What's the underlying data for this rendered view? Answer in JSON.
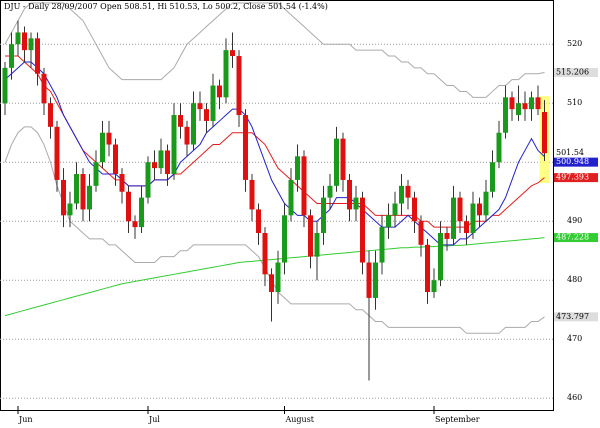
{
  "chart_data": {
    "type": "candlestick",
    "title": "DJU - Daily 28/09/2007 Open 508.51, Hi 510.53, Lo 500.2, Close 501.54 (-1.4%)",
    "categories": [
      null,
      null,
      "Jun",
      null,
      null,
      null,
      null,
      null,
      null,
      null,
      null,
      null,
      null,
      null,
      null,
      null,
      null,
      null,
      null,
      null,
      null,
      null,
      "Jul",
      null,
      null,
      null,
      null,
      null,
      null,
      null,
      null,
      null,
      null,
      null,
      null,
      null,
      null,
      null,
      null,
      null,
      null,
      null,
      null,
      "August",
      null,
      null,
      null,
      null,
      null,
      null,
      null,
      null,
      null,
      null,
      null,
      null,
      null,
      null,
      null,
      null,
      null,
      null,
      null,
      null,
      null,
      null,
      "September",
      null,
      null,
      null,
      null,
      null,
      null,
      null,
      null,
      null,
      null,
      null,
      null,
      null,
      null,
      null,
      null,
      null
    ],
    "open": [
      510,
      516,
      520,
      522,
      519,
      521,
      515,
      510,
      506,
      497,
      491,
      493,
      498,
      492,
      496,
      500,
      505,
      503,
      498,
      495,
      490,
      489,
      494,
      500,
      499,
      502,
      498,
      508,
      506,
      503,
      510,
      509,
      507,
      513,
      511,
      519,
      518,
      508,
      497,
      492,
      488,
      481,
      478,
      483,
      491,
      497,
      501,
      491,
      484,
      488,
      494,
      496,
      504,
      497,
      492,
      494,
      483,
      477,
      483,
      489,
      491,
      493,
      496,
      494,
      490,
      486,
      478,
      480,
      488,
      487,
      494,
      490,
      488,
      493,
      491,
      495,
      500,
      505,
      511,
      508,
      510,
      509,
      511,
      508.51
    ],
    "high": [
      517,
      522,
      524,
      523,
      522,
      522,
      516,
      511,
      507,
      499,
      495,
      500,
      499,
      498,
      502,
      507,
      507,
      504,
      499,
      496,
      491,
      496,
      501,
      502,
      504,
      503,
      510,
      510,
      507,
      512,
      512,
      510,
      515,
      514,
      521,
      522,
      519,
      509,
      498,
      493,
      489,
      482,
      485,
      493,
      499,
      503,
      502,
      492,
      490,
      496,
      498,
      506,
      505,
      498,
      496,
      495,
      485,
      485,
      491,
      493,
      495,
      498,
      497,
      495,
      491,
      487,
      482,
      490,
      489,
      496,
      495,
      491,
      495,
      494,
      497,
      502,
      507,
      513,
      512,
      513,
      512,
      512,
      513,
      510.53
    ],
    "low": [
      508,
      514,
      518,
      517,
      516,
      513,
      508,
      504,
      495,
      489,
      489,
      492,
      490,
      490,
      495,
      499,
      501,
      496,
      493,
      488,
      487,
      488,
      493,
      497,
      498,
      496,
      497,
      504,
      501,
      502,
      507,
      505,
      506,
      509,
      510,
      516,
      506,
      495,
      490,
      486,
      479,
      473,
      476,
      481,
      490,
      495,
      489,
      482,
      480,
      486,
      492,
      495,
      495,
      490,
      490,
      481,
      463,
      475,
      481,
      487,
      489,
      491,
      492,
      488,
      484,
      476,
      477,
      479,
      485,
      486,
      488,
      486,
      487,
      489,
      490,
      494,
      499,
      504,
      507,
      507,
      507,
      507,
      508,
      500.2
    ],
    "close": [
      516,
      520,
      522,
      519,
      521,
      515,
      510,
      506,
      497,
      491,
      493,
      498,
      492,
      496,
      500,
      505,
      503,
      498,
      495,
      490,
      489,
      494,
      500,
      499,
      502,
      498,
      508,
      506,
      503,
      510,
      509,
      507,
      513,
      511,
      519,
      518,
      508,
      497,
      492,
      488,
      481,
      478,
      483,
      491,
      497,
      501,
      491,
      484,
      488,
      494,
      496,
      504,
      497,
      492,
      494,
      483,
      477,
      483,
      489,
      491,
      493,
      496,
      494,
      490,
      486,
      478,
      480,
      488,
      487,
      494,
      490,
      488,
      493,
      491,
      495,
      500,
      505,
      511,
      509,
      510,
      509,
      511,
      509,
      501.54
    ],
    "close_label": "501.54",
    "up_color": "#1a9a1a",
    "down_color": "#e01010",
    "ylim": [
      458,
      527.5
    ],
    "yticks": [
      460,
      470,
      480,
      490,
      500,
      510,
      520
    ],
    "grid": true,
    "series": [
      {
        "color": "#aaaaaa",
        "label": "515.206",
        "values": [
          520,
          522,
          524,
          526,
          527,
          527,
          527,
          527,
          527,
          527,
          526,
          525,
          524,
          522,
          520,
          518,
          516,
          515,
          514,
          514,
          514,
          514,
          514,
          514,
          514,
          515,
          516,
          518,
          520,
          521,
          522,
          523,
          524,
          525,
          526,
          527,
          527,
          527,
          527,
          527,
          527,
          527,
          527,
          526,
          525,
          524,
          523,
          522,
          521,
          520,
          520,
          520,
          520,
          520,
          519,
          519,
          519,
          519,
          519,
          518,
          518,
          517,
          517,
          516,
          516,
          515,
          515,
          514,
          513,
          513,
          512,
          512,
          511,
          511,
          511,
          512,
          513,
          513,
          514,
          514,
          515,
          515,
          515,
          515.206
        ]
      },
      {
        "color": "#aaaaaa",
        "label": "473.797",
        "values": [
          500,
          503,
          505,
          506,
          506,
          505,
          503,
          500,
          496,
          493,
          490,
          489,
          488,
          487,
          487,
          487,
          486,
          486,
          485,
          484,
          483,
          483,
          483,
          483,
          484,
          484,
          484,
          485,
          485,
          486,
          486,
          486,
          486,
          486,
          486,
          486,
          486,
          486,
          485,
          484,
          482,
          480,
          478,
          477,
          476,
          476,
          476,
          476,
          476,
          476,
          476,
          476,
          476,
          476,
          475,
          475,
          474,
          473,
          473,
          472,
          472,
          472,
          472,
          472,
          472,
          472,
          472,
          472,
          472,
          472,
          472,
          471,
          471,
          471,
          471,
          471,
          471,
          472,
          472,
          472,
          472,
          473,
          473,
          473.797
        ]
      },
      {
        "color": "#33cc33",
        "label": "487.228",
        "values": [
          474.0,
          474.3,
          474.6,
          474.9,
          475.2,
          475.5,
          475.8,
          476.1,
          476.4,
          476.7,
          477.0,
          477.3,
          477.6,
          477.9,
          478.2,
          478.5,
          478.8,
          479.1,
          479.4,
          479.6,
          479.8,
          480.0,
          480.2,
          480.4,
          480.6,
          480.8,
          481.0,
          481.2,
          481.4,
          481.6,
          481.8,
          482.0,
          482.2,
          482.4,
          482.6,
          482.8,
          483.0,
          483.1,
          483.2,
          483.3,
          483.4,
          483.5,
          483.6,
          483.7,
          483.8,
          483.9,
          484.0,
          484.1,
          484.2,
          484.3,
          484.4,
          484.5,
          484.6,
          484.7,
          484.8,
          484.9,
          485.0,
          485.1,
          485.2,
          485.3,
          485.4,
          485.5,
          485.5,
          485.6,
          485.6,
          485.7,
          485.7,
          485.8,
          485.8,
          485.9,
          485.9,
          486.0,
          486.1,
          486.2,
          486.3,
          486.4,
          486.5,
          486.6,
          486.7,
          486.8,
          486.9,
          487.0,
          487.1,
          487.228
        ]
      },
      {
        "color": "#e02020",
        "label": "497.393",
        "values": [
          518,
          518,
          518,
          517,
          516,
          515,
          513,
          512,
          510,
          508,
          506,
          504,
          502,
          501,
          500,
          499,
          498,
          497,
          497,
          496,
          496,
          496,
          496,
          497,
          497,
          497,
          498,
          498,
          499,
          500,
          501,
          502,
          503,
          503,
          504,
          505,
          505,
          505,
          505,
          504,
          503,
          501,
          499,
          498,
          497,
          496,
          495,
          494,
          493,
          493,
          493,
          493,
          493,
          493,
          493,
          493,
          492,
          491,
          491,
          491,
          491,
          491,
          491,
          491,
          490,
          490,
          489,
          489,
          489,
          489,
          489,
          489,
          490,
          490,
          490,
          491,
          491,
          492,
          493,
          494,
          495,
          496,
          496.5,
          497.393
        ]
      },
      {
        "color": "#2222cc",
        "label": "500.948",
        "values": [
          514,
          515,
          516,
          517,
          517,
          516,
          515,
          513,
          511,
          508,
          506,
          504,
          502,
          500,
          499,
          498,
          498,
          498,
          497,
          496,
          496,
          496,
          496,
          497,
          497,
          497,
          498,
          500,
          501,
          502,
          503,
          505,
          506,
          507,
          508,
          509,
          509,
          508,
          506,
          503,
          500,
          497,
          495,
          493,
          492,
          491,
          491,
          490,
          490,
          491,
          492,
          494,
          494,
          494,
          493,
          492,
          491,
          490,
          489,
          489,
          489,
          490,
          491,
          490,
          489,
          488,
          487,
          486,
          486,
          486,
          487,
          487,
          488,
          489,
          490,
          491,
          492,
          494,
          497,
          500,
          502,
          504,
          502,
          500.948
        ]
      }
    ]
  }
}
